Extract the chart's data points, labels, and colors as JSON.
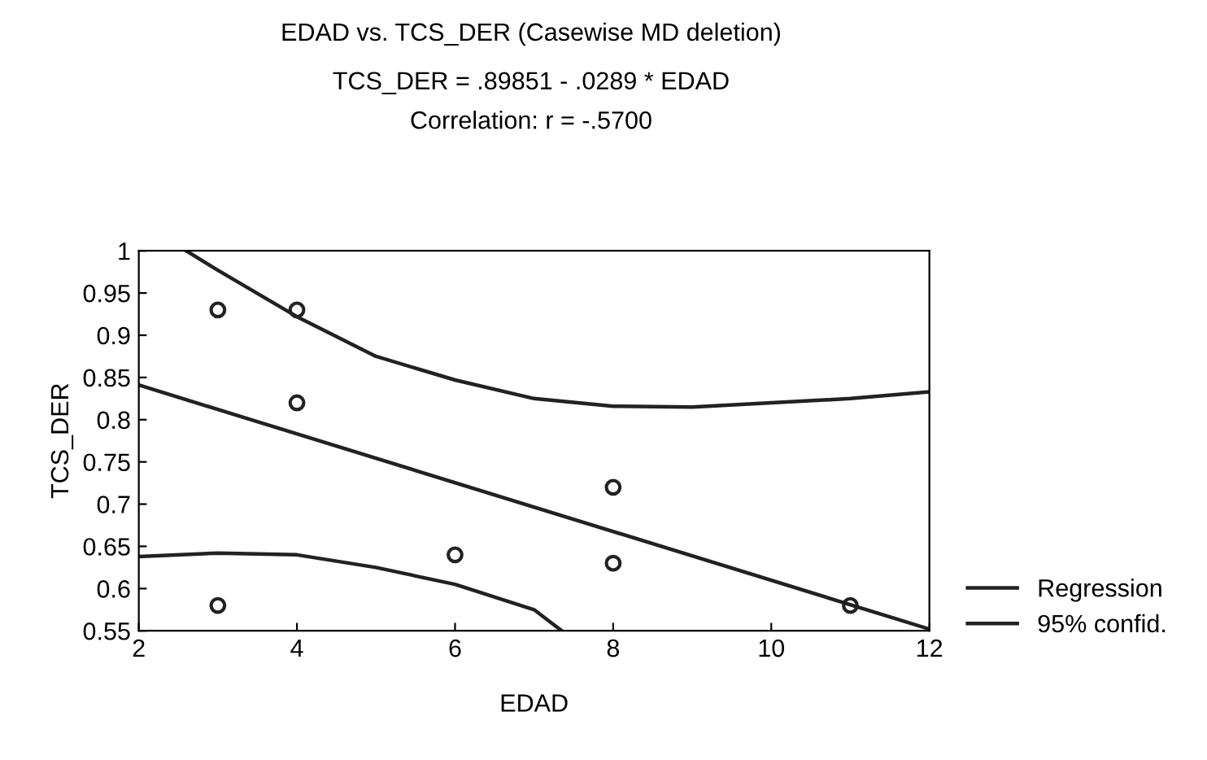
{
  "chart_data": {
    "type": "scatter",
    "title": "EDAD vs. TCS_DER (Casewise MD deletion)",
    "subtitle": "TCS_DER = .89851 - .0289 * EDAD\nCorrelation: r = -.5700",
    "xlabel": "EDAD",
    "ylabel": "TCS_DER",
    "xlim": [
      2,
      12
    ],
    "xticks": [
      2,
      4,
      6,
      8,
      10,
      12
    ],
    "ylim": [
      0.55,
      1
    ],
    "yticks": [
      0.55,
      0.6,
      0.65,
      0.7,
      0.75,
      0.8,
      0.85,
      0.9,
      0.95,
      1
    ],
    "grid": false,
    "legend": "right",
    "series": [
      {
        "color": "#222222",
        "marker": "circle",
        "x": [
          3,
          4,
          4,
          3,
          6,
          8,
          8,
          11
        ],
        "values": [
          0.93,
          0.93,
          0.82,
          0.58,
          0.64,
          0.72,
          0.63,
          0.58
        ]
      },
      {
        "type": "line",
        "name": "Regression",
        "color": "#222222",
        "x": [
          2,
          12
        ],
        "values": [
          0.841,
          0.552
        ]
      },
      {
        "type": "line",
        "name": "95% confid.",
        "color": "#222222",
        "x": [
          2.6,
          3,
          4,
          5,
          6,
          7,
          8,
          9,
          10,
          11,
          12
        ],
        "values": [
          1.0,
          0.977,
          0.922,
          0.875,
          0.847,
          0.825,
          0.816,
          0.815,
          0.82,
          0.825,
          0.833
        ]
      },
      {
        "type": "line",
        "color": "#222222",
        "x": [
          2,
          3,
          4,
          5,
          6,
          7,
          7.35
        ],
        "values": [
          0.638,
          0.642,
          0.64,
          0.625,
          0.605,
          0.575,
          0.55
        ]
      }
    ]
  }
}
